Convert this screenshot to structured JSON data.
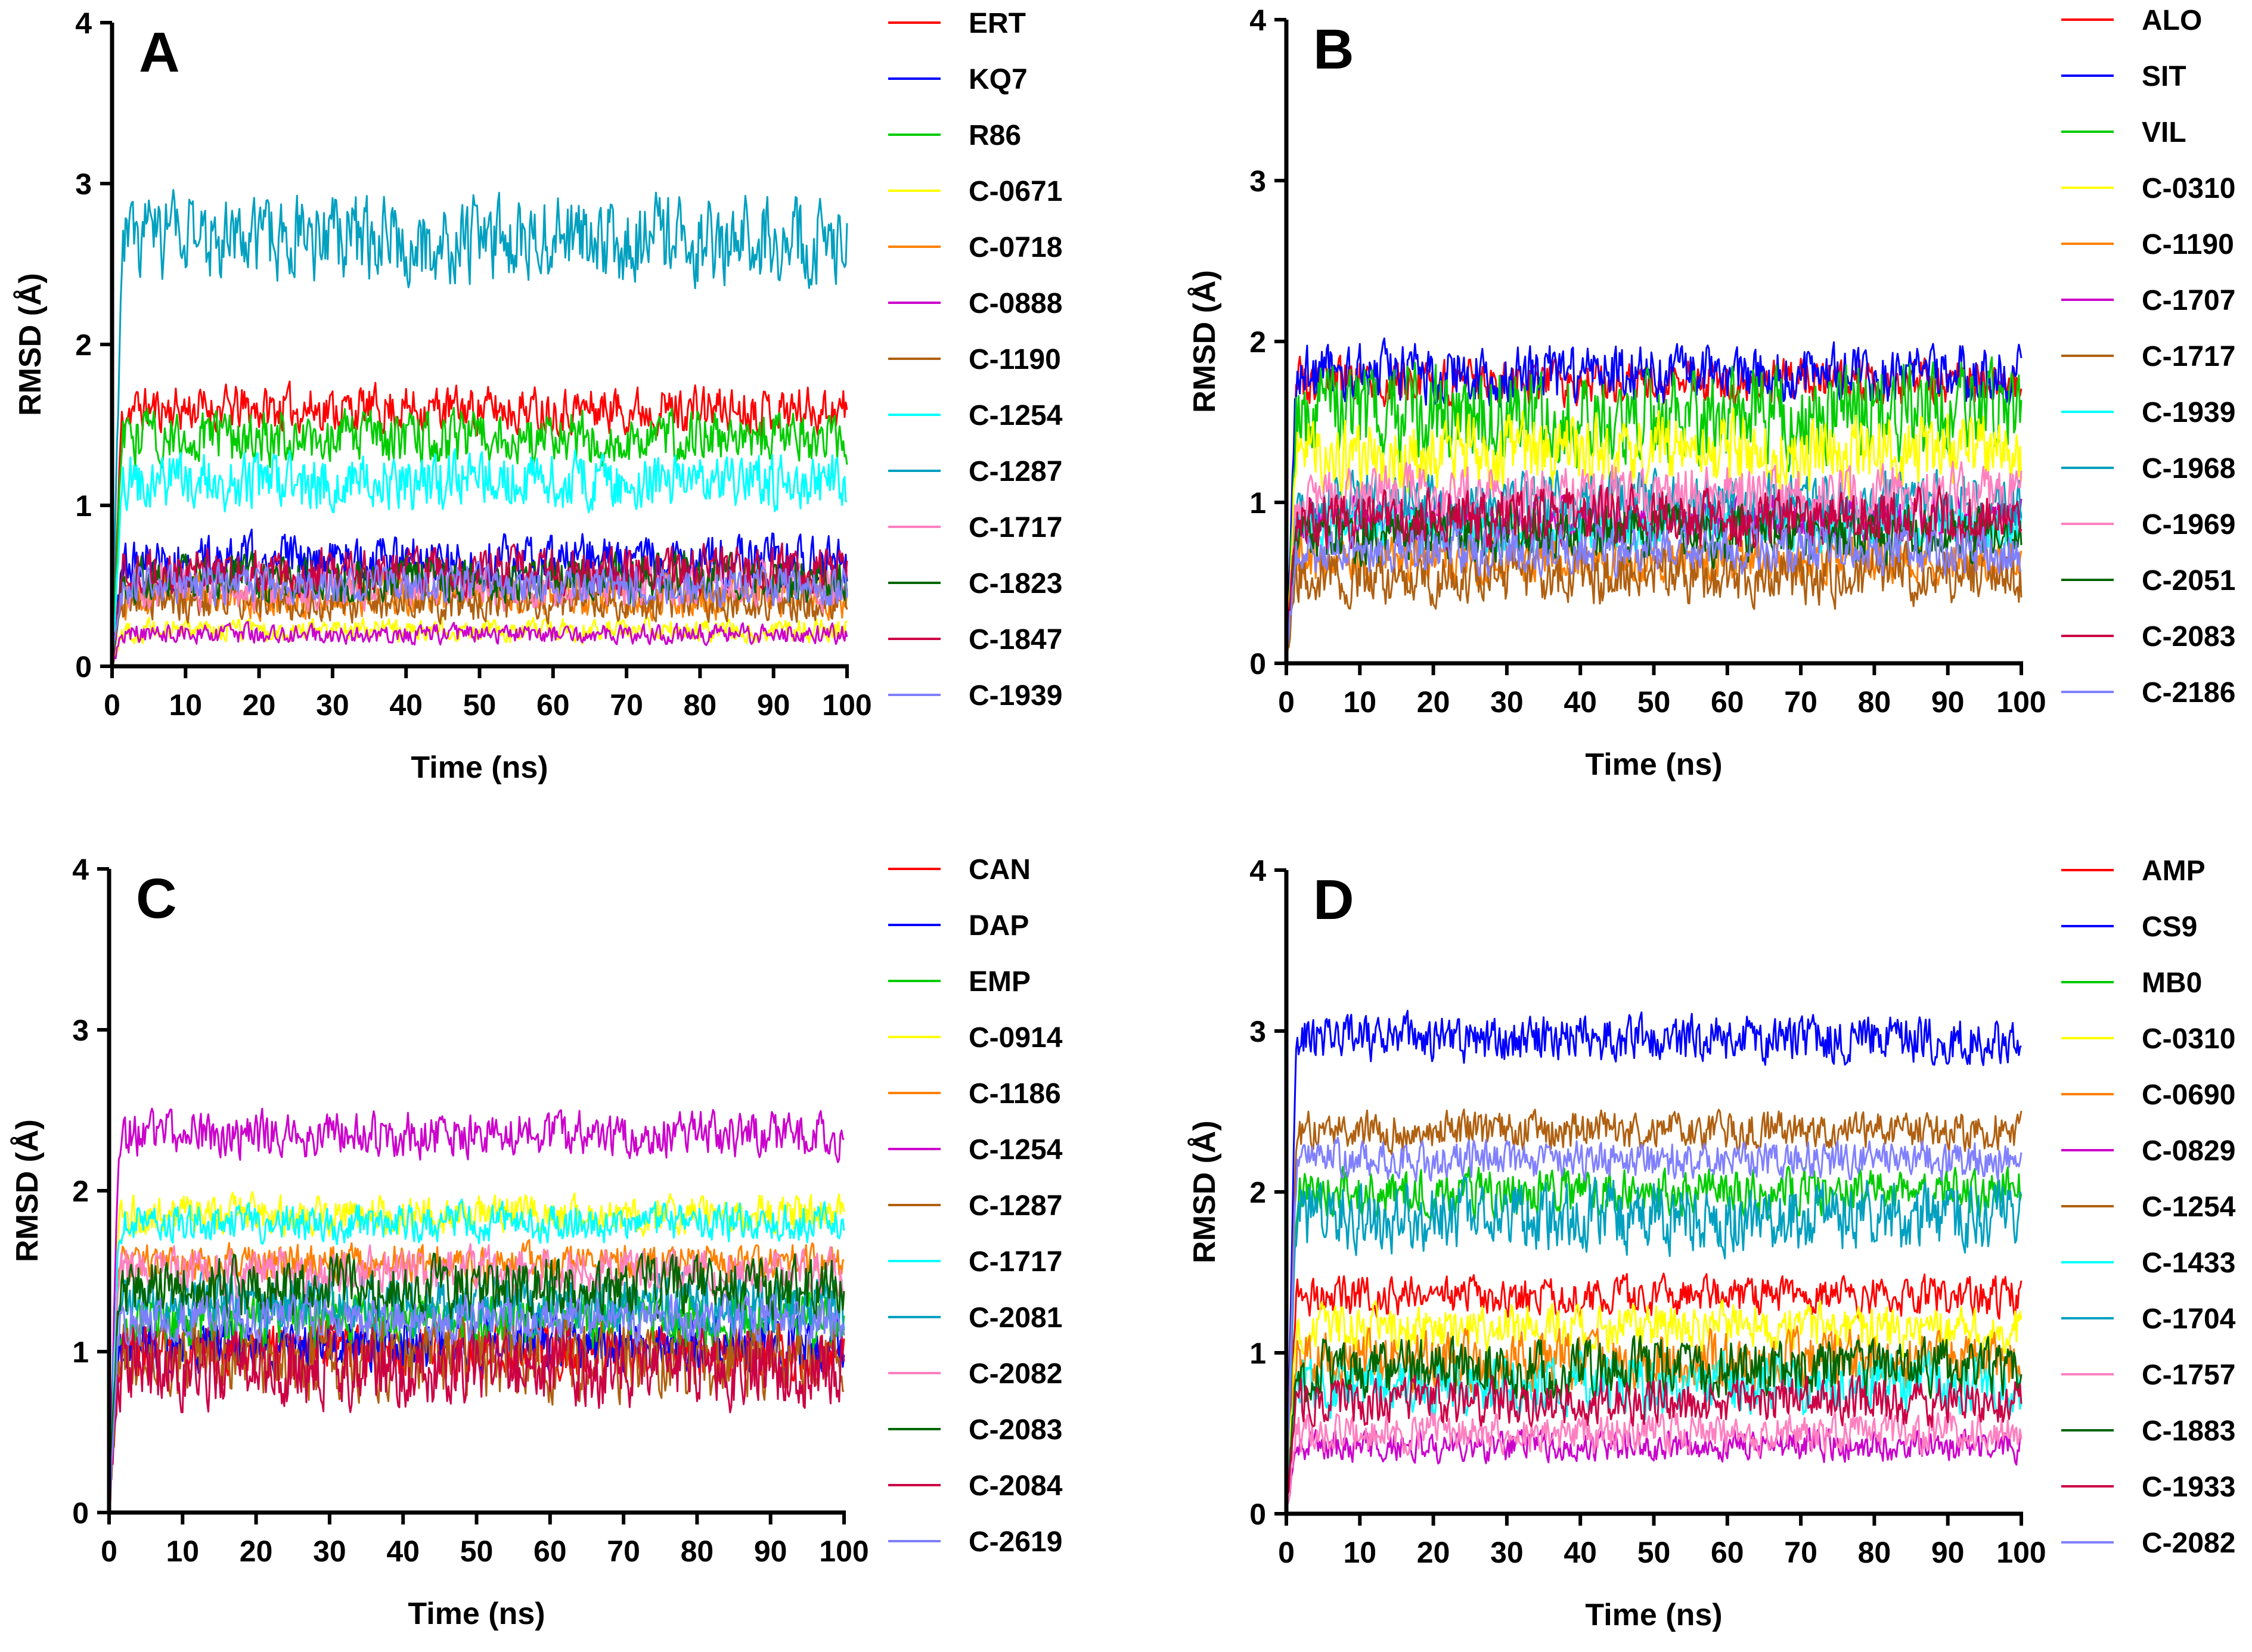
{
  "chart_data": [
    {
      "type": "line",
      "panel": "A",
      "xlabel": "Time (ns)",
      "ylabel": "RMSD  (Å)",
      "xlim": [
        0,
        100
      ],
      "ylim": [
        0,
        4
      ],
      "xticks": [
        0,
        10,
        20,
        30,
        40,
        50,
        60,
        70,
        80,
        90,
        100
      ],
      "yticks": [
        0,
        1,
        2,
        3,
        4
      ],
      "legend_position": "right",
      "series": [
        {
          "name": "ERT",
          "color": "#ff0000",
          "mean": 1.6,
          "noise": 0.12
        },
        {
          "name": "KQ7",
          "color": "#0000ff",
          "mean": 0.65,
          "noise": 0.14
        },
        {
          "name": "R86",
          "color": "#00cc00",
          "mean": 1.42,
          "noise": 0.14
        },
        {
          "name": "C-0671",
          "color": "#ffff00",
          "mean": 0.22,
          "noise": 0.06
        },
        {
          "name": "C-0718",
          "color": "#ff8000",
          "mean": 0.45,
          "noise": 0.12
        },
        {
          "name": "C-0888",
          "color": "#cc00cc",
          "mean": 0.2,
          "noise": 0.05
        },
        {
          "name": "C-1190",
          "color": "#b06010",
          "mean": 0.4,
          "noise": 0.1
        },
        {
          "name": "C-1254",
          "color": "#00ffff",
          "mean": 1.15,
          "noise": 0.15
        },
        {
          "name": "C-1287",
          "color": "#00a0c0",
          "mean": 2.65,
          "noise": 0.22
        },
        {
          "name": "C-1717",
          "color": "#ff80c0",
          "mean": 0.5,
          "noise": 0.12
        },
        {
          "name": "C-1823",
          "color": "#006600",
          "mean": 0.55,
          "noise": 0.12
        },
        {
          "name": "C-1847",
          "color": "#cc0044",
          "mean": 0.6,
          "noise": 0.12
        },
        {
          "name": "C-1939",
          "color": "#8080ff",
          "mean": 0.5,
          "noise": 0.1
        }
      ]
    },
    {
      "type": "line",
      "panel": "B",
      "xlabel": "Time (ns)",
      "ylabel": "RMSD  (Å)",
      "xlim": [
        0,
        100
      ],
      "ylim": [
        0,
        4
      ],
      "xticks": [
        0,
        10,
        20,
        30,
        40,
        50,
        60,
        70,
        80,
        90,
        100
      ],
      "yticks": [
        0,
        1,
        2,
        3,
        4
      ],
      "legend_position": "right",
      "series": [
        {
          "name": "ALO",
          "color": "#ff0000",
          "mean": 1.75,
          "noise": 0.12
        },
        {
          "name": "SIT",
          "color": "#0000ff",
          "mean": 1.8,
          "noise": 0.15
        },
        {
          "name": "VIL",
          "color": "#00cc00",
          "mean": 1.55,
          "noise": 0.25
        },
        {
          "name": "C-0310",
          "color": "#ffff00",
          "mean": 1.3,
          "noise": 0.2
        },
        {
          "name": "C-1190",
          "color": "#ff8000",
          "mean": 0.65,
          "noise": 0.12
        },
        {
          "name": "C-1707",
          "color": "#cc00cc",
          "mean": 0.9,
          "noise": 0.12
        },
        {
          "name": "C-1717",
          "color": "#b06010",
          "mean": 0.55,
          "noise": 0.15
        },
        {
          "name": "C-1939",
          "color": "#00ffff",
          "mean": 0.85,
          "noise": 0.12
        },
        {
          "name": "C-1968",
          "color": "#00a0c0",
          "mean": 1.0,
          "noise": 0.15
        },
        {
          "name": "C-1969",
          "color": "#ff80c0",
          "mean": 1.05,
          "noise": 0.15
        },
        {
          "name": "C-2051",
          "color": "#006600",
          "mean": 0.8,
          "noise": 0.15
        },
        {
          "name": "C-2083",
          "color": "#cc0044",
          "mean": 0.9,
          "noise": 0.15
        },
        {
          "name": "C-2186",
          "color": "#8080ff",
          "mean": 0.7,
          "noise": 0.12
        }
      ]
    },
    {
      "type": "line",
      "panel": "C",
      "xlabel": "Time (ns)",
      "ylabel": "RMSD  (Å)",
      "xlim": [
        0,
        100
      ],
      "ylim": [
        0,
        4
      ],
      "xticks": [
        0,
        10,
        20,
        30,
        40,
        50,
        60,
        70,
        80,
        90,
        100
      ],
      "yticks": [
        0,
        1,
        2,
        3,
        4
      ],
      "legend_position": "right",
      "series": [
        {
          "name": "CAN",
          "color": "#ff0000",
          "mean": 1.0,
          "noise": 0.14
        },
        {
          "name": "DAP",
          "color": "#0000ff",
          "mean": 1.05,
          "noise": 0.15
        },
        {
          "name": "EMP",
          "color": "#00cc00",
          "mean": 1.2,
          "noise": 0.15
        },
        {
          "name": "C-0914",
          "color": "#ffff00",
          "mean": 1.85,
          "noise": 0.1
        },
        {
          "name": "C-1186",
          "color": "#ff8000",
          "mean": 1.55,
          "noise": 0.1
        },
        {
          "name": "C-1254",
          "color": "#cc00cc",
          "mean": 2.35,
          "noise": 0.12
        },
        {
          "name": "C-1287",
          "color": "#b06010",
          "mean": 0.95,
          "noise": 0.2
        },
        {
          "name": "C-1717",
          "color": "#00ffff",
          "mean": 1.8,
          "noise": 0.1
        },
        {
          "name": "C-2081",
          "color": "#00a0c0",
          "mean": 1.3,
          "noise": 0.15
        },
        {
          "name": "C-2082",
          "color": "#ff80c0",
          "mean": 1.5,
          "noise": 0.12
        },
        {
          "name": "C-2083",
          "color": "#006600",
          "mean": 1.4,
          "noise": 0.15
        },
        {
          "name": "C-2084",
          "color": "#cc0044",
          "mean": 0.9,
          "noise": 0.2
        },
        {
          "name": "C-2619",
          "color": "#8080ff",
          "mean": 1.2,
          "noise": 0.12
        }
      ]
    },
    {
      "type": "line",
      "panel": "D",
      "xlabel": "Time (ns)",
      "ylabel": "RMSD  (Å)",
      "xlim": [
        0,
        100
      ],
      "ylim": [
        0,
        4
      ],
      "xticks": [
        0,
        10,
        20,
        30,
        40,
        50,
        60,
        70,
        80,
        90,
        100
      ],
      "yticks": [
        0,
        1,
        2,
        3,
        4
      ],
      "legend_position": "right",
      "series": [
        {
          "name": "AMP",
          "color": "#ff0000",
          "mean": 1.35,
          "noise": 0.1
        },
        {
          "name": "CS9",
          "color": "#0000ff",
          "mean": 2.95,
          "noise": 0.12
        },
        {
          "name": "MB0",
          "color": "#00cc00",
          "mean": 2.0,
          "noise": 0.12
        },
        {
          "name": "C-0310",
          "color": "#ffff00",
          "mean": 1.15,
          "noise": 0.12
        },
        {
          "name": "C-0690",
          "color": "#ff8000",
          "mean": 0.95,
          "noise": 0.15
        },
        {
          "name": "C-0829",
          "color": "#cc00cc",
          "mean": 0.42,
          "noise": 0.08
        },
        {
          "name": "C-1254",
          "color": "#b06010",
          "mean": 2.38,
          "noise": 0.1
        },
        {
          "name": "C-1433",
          "color": "#00ffff",
          "mean": 0.8,
          "noise": 0.15
        },
        {
          "name": "C-1704",
          "color": "#00a0c0",
          "mean": 1.85,
          "noise": 0.18
        },
        {
          "name": "C-1757",
          "color": "#ff80c0",
          "mean": 0.5,
          "noise": 0.1
        },
        {
          "name": "C-1883",
          "color": "#006600",
          "mean": 0.9,
          "noise": 0.15
        },
        {
          "name": "C-1933",
          "color": "#cc0044",
          "mean": 0.7,
          "noise": 0.12
        },
        {
          "name": "C-2082",
          "color": "#8080ff",
          "mean": 2.2,
          "noise": 0.1
        }
      ]
    }
  ]
}
